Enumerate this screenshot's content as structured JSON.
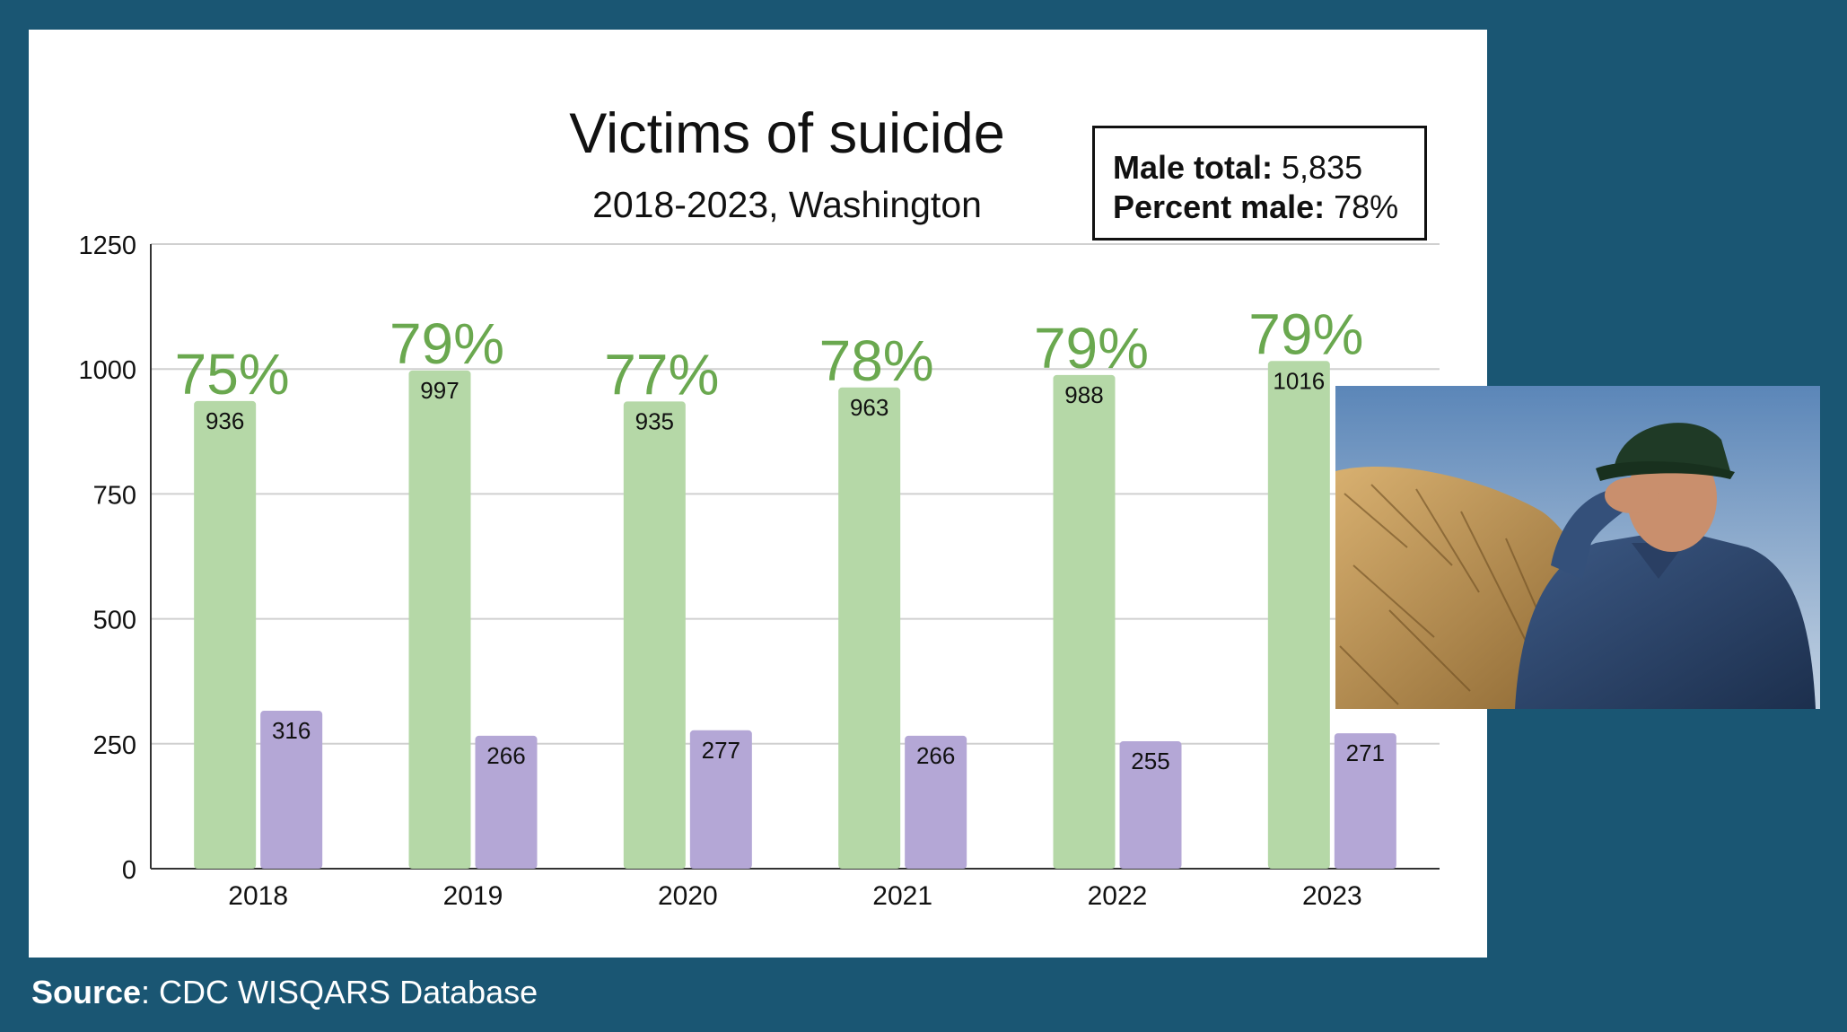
{
  "chart_data": {
    "type": "bar",
    "title": "Victims of suicide",
    "subtitle": "2018-2023, Washington",
    "categories": [
      "2018",
      "2019",
      "2020",
      "2021",
      "2022",
      "2023"
    ],
    "series": [
      {
        "values": [
          936,
          997,
          935,
          963,
          988,
          1016
        ],
        "color": "#b5d8a7"
      },
      {
        "values": [
          316,
          266,
          277,
          266,
          255,
          271
        ],
        "color": "#b4a7d6"
      }
    ],
    "percent_labels": [
      "75%",
      "79%",
      "77%",
      "78%",
      "79%",
      "79%"
    ],
    "percent_label_color": "#6aa84f",
    "ylim": [
      0,
      1250
    ],
    "yticks": [
      0,
      250,
      500,
      750,
      1000,
      1250
    ],
    "grid": true,
    "xlabel": "",
    "ylabel": ""
  },
  "stats": {
    "male_total_label": "Male total:",
    "male_total_value": "5,835",
    "percent_male_label": "Percent male:",
    "percent_male_value": "78%"
  },
  "source": {
    "label": "Source",
    "text": ": CDC WISQARS Database"
  },
  "colors": {
    "background": "#1a5673",
    "panel": "#ffffff"
  }
}
